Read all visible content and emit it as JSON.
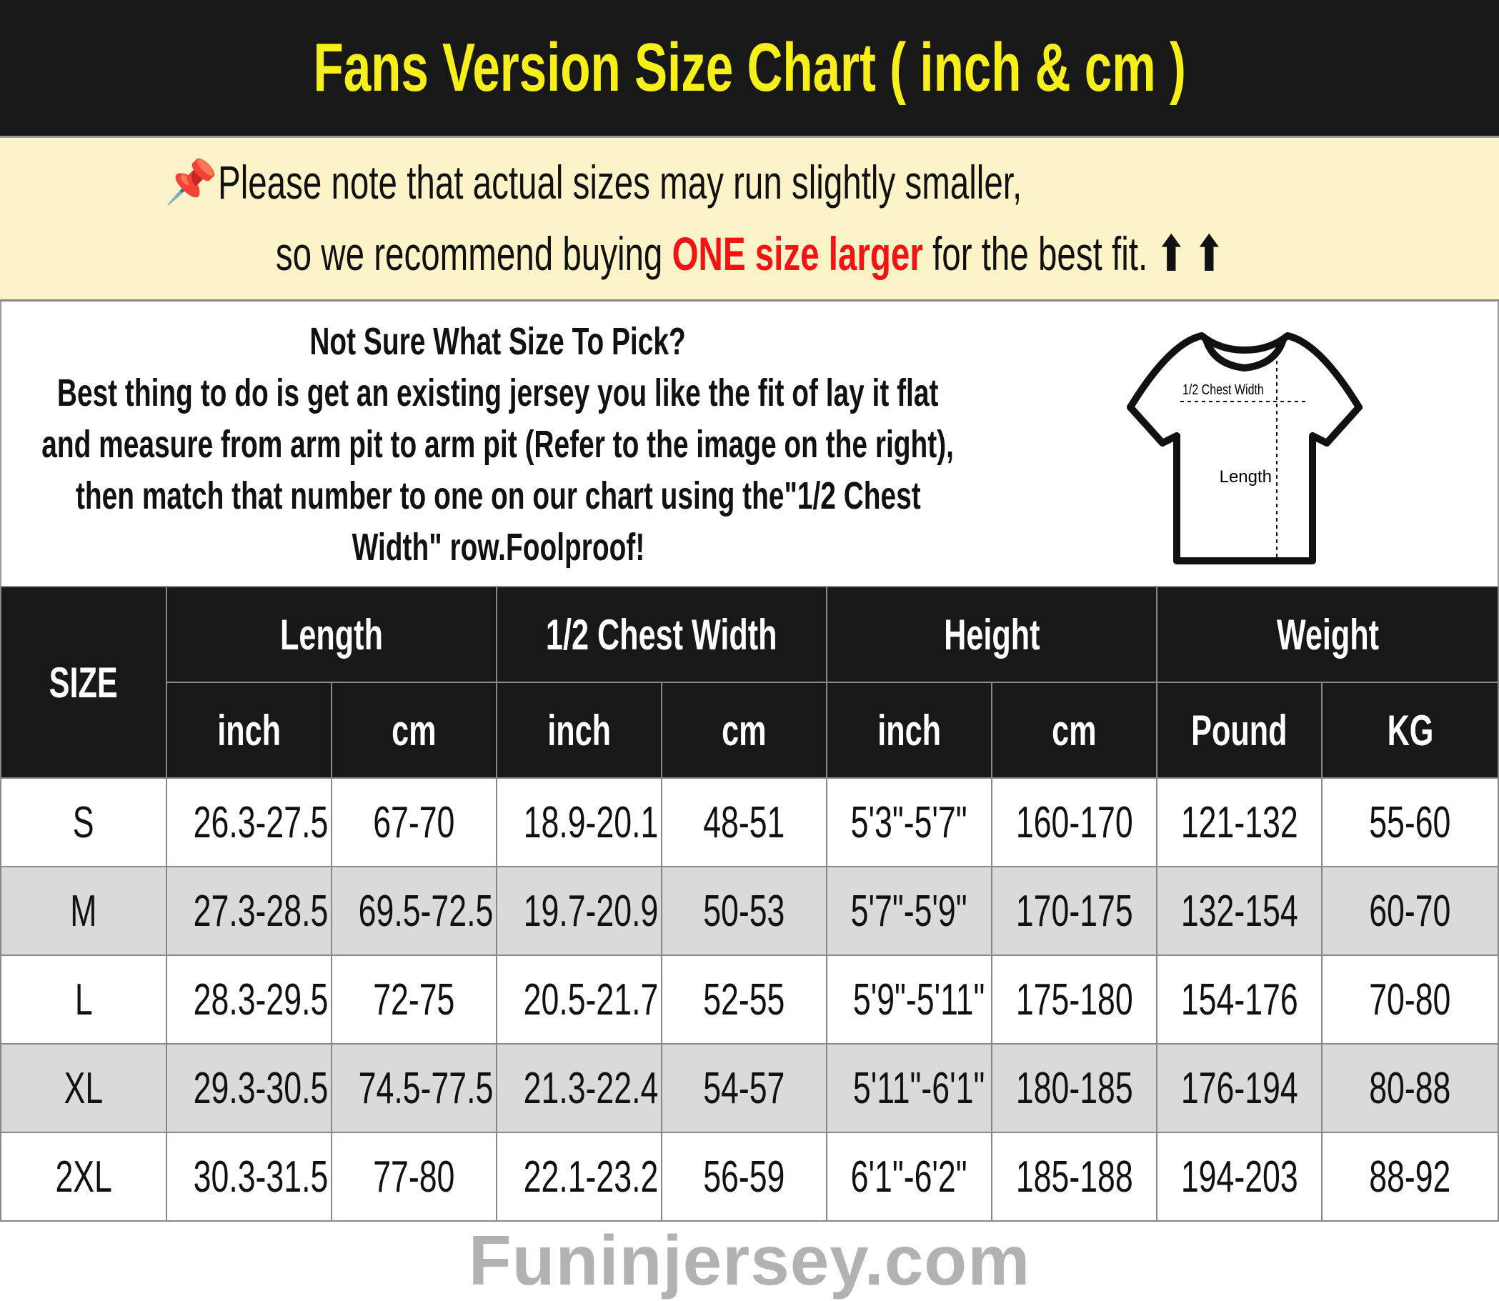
{
  "title": "Fans Version Size Chart ( inch & cm )",
  "note": {
    "icon": "pushpin-icon",
    "line1": "Please note that actual sizes may run slightly smaller,",
    "line2_before": "so we recommend buying ",
    "line2_highlight": "ONE size larger",
    "line2_after": " for the best fit.",
    "arrows": "⬆ ⬆",
    "highlight_color": "#f31313"
  },
  "info": {
    "lines": [
      "Not Sure What Size To Pick?",
      "Best thing to do is get an existing jersey you like the fit of lay it flat",
      "and measure from arm pit to arm pit (Refer to the image on the right),",
      "then match that number to one on our chart using the\"1/2 Chest",
      "Width\" row.Foolproof!"
    ],
    "diagram": {
      "chest_label": "1/2 Chest Width",
      "length_label": "Length"
    }
  },
  "watermark": "Funinjersey.com",
  "table": {
    "size_header": "SIZE",
    "groups": [
      "Length",
      "1/2 Chest Width",
      "Height",
      "Weight"
    ],
    "units": [
      "inch",
      "cm",
      "inch",
      "cm",
      "inch",
      "cm",
      "Pound",
      "KG"
    ],
    "rows": [
      [
        "S",
        "26.3-27.5",
        "67-70",
        "18.9-20.1",
        "48-51",
        "5'3\"-5'7\"",
        "160-170",
        "121-132",
        "55-60"
      ],
      [
        "M",
        "27.3-28.5",
        "69.5-72.5",
        "19.7-20.9",
        "50-53",
        "5'7\"-5'9\"",
        "170-175",
        "132-154",
        "60-70"
      ],
      [
        "L",
        "28.3-29.5",
        "72-75",
        "20.5-21.7",
        "52-55",
        "5'9\"-5'11\"",
        "175-180",
        "154-176",
        "70-80"
      ],
      [
        "XL",
        "29.3-30.5",
        "74.5-77.5",
        "21.3-22.4",
        "54-57",
        "5'11\"-6'1\"",
        "180-185",
        "176-194",
        "80-88"
      ],
      [
        "2XL",
        "30.3-31.5",
        "77-80",
        "22.1-23.2",
        "56-59",
        "6'1\"-6'2\"",
        "185-188",
        "194-203",
        "88-92"
      ]
    ]
  }
}
